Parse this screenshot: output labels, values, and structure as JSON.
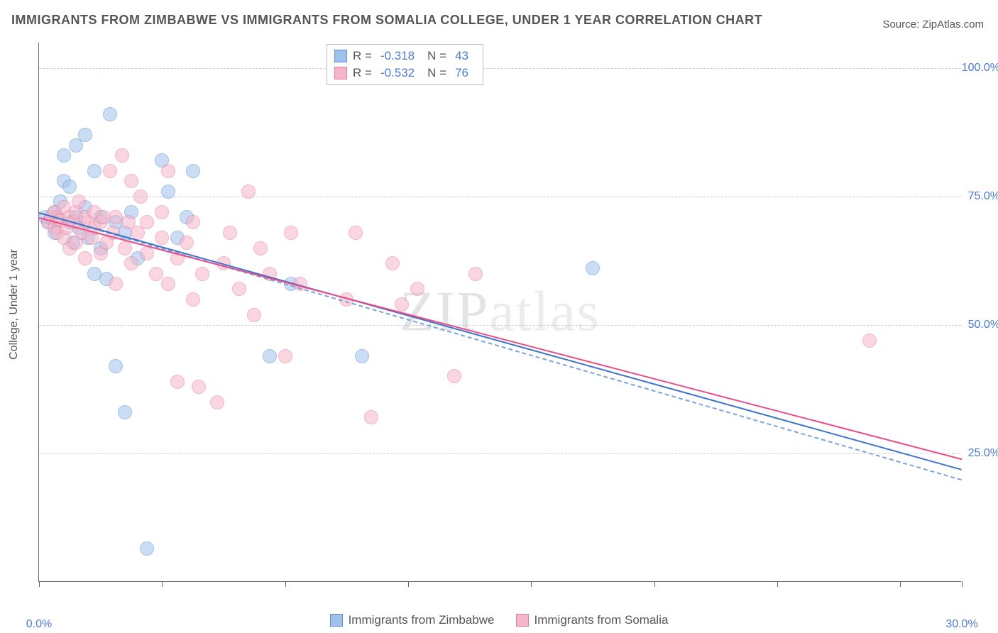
{
  "title": "IMMIGRANTS FROM ZIMBABWE VS IMMIGRANTS FROM SOMALIA COLLEGE, UNDER 1 YEAR CORRELATION CHART",
  "source": "Source: ZipAtlas.com",
  "y_axis_label": "College, Under 1 year",
  "watermark": "ZIPatlas",
  "chart": {
    "type": "scatter",
    "background_color": "#ffffff",
    "grid_color": "#cccccc",
    "axis_color": "#666666",
    "label_color": "#4a7bd0",
    "xlim": [
      0,
      30
    ],
    "ylim": [
      0,
      105
    ],
    "x_ticks": [
      0,
      4,
      8,
      12,
      16,
      20,
      24,
      28,
      30
    ],
    "x_tick_labels": {
      "0": "0.0%",
      "30": "30.0%"
    },
    "y_gridlines": [
      25,
      50,
      75,
      100
    ],
    "y_tick_labels": {
      "25": "25.0%",
      "50": "50.0%",
      "75": "75.0%",
      "100": "100.0%"
    },
    "point_radius": 10,
    "point_opacity": 0.55,
    "trend_line_width": 2.5,
    "trend_line_style_secondary": "dashed"
  },
  "series": [
    {
      "name": "Immigrants from Zimbabwe",
      "color_fill": "#9fc2ec",
      "color_stroke": "#5b8fd6",
      "trend_color": "#3e74c9",
      "trend_secondary_color": "#7aa4d9",
      "R": "-0.318",
      "N": "43",
      "trend": {
        "x1": 0,
        "y1": 72,
        "x2": 30,
        "y2": 22
      },
      "trend2": {
        "x1": 0,
        "y1": 72,
        "x2": 30,
        "y2": 20
      },
      "points": [
        [
          0.2,
          71
        ],
        [
          0.3,
          70
        ],
        [
          0.5,
          72
        ],
        [
          0.5,
          68
        ],
        [
          0.6,
          70.5
        ],
        [
          0.7,
          74
        ],
        [
          0.8,
          78
        ],
        [
          0.8,
          83
        ],
        [
          1.0,
          77
        ],
        [
          1.0,
          70
        ],
        [
          1.1,
          66
        ],
        [
          1.2,
          85
        ],
        [
          1.2,
          71
        ],
        [
          1.3,
          69
        ],
        [
          1.5,
          87
        ],
        [
          1.5,
          73
        ],
        [
          1.6,
          67
        ],
        [
          1.8,
          80
        ],
        [
          1.8,
          60
        ],
        [
          2.0,
          71
        ],
        [
          2.0,
          65
        ],
        [
          2.2,
          59
        ],
        [
          2.3,
          91
        ],
        [
          2.5,
          70
        ],
        [
          2.5,
          42
        ],
        [
          2.8,
          68
        ],
        [
          2.8,
          33
        ],
        [
          3.0,
          72
        ],
        [
          3.2,
          63
        ],
        [
          3.5,
          6.5
        ],
        [
          4.0,
          82
        ],
        [
          4.2,
          76
        ],
        [
          4.5,
          67
        ],
        [
          4.8,
          71
        ],
        [
          5.0,
          80
        ],
        [
          7.5,
          44
        ],
        [
          8.2,
          58
        ],
        [
          10.5,
          44
        ],
        [
          18.0,
          61
        ]
      ]
    },
    {
      "name": "Immigrants from Somalia",
      "color_fill": "#f5b6c8",
      "color_stroke": "#e77ba0",
      "trend_color": "#e84d89",
      "R": "-0.532",
      "N": "76",
      "trend": {
        "x1": 0,
        "y1": 71,
        "x2": 30,
        "y2": 24
      },
      "points": [
        [
          0.3,
          70
        ],
        [
          0.4,
          71
        ],
        [
          0.5,
          69
        ],
        [
          0.5,
          72
        ],
        [
          0.6,
          68
        ],
        [
          0.6,
          71
        ],
        [
          0.7,
          70.5
        ],
        [
          0.8,
          73
        ],
        [
          0.8,
          67
        ],
        [
          0.9,
          69
        ],
        [
          1.0,
          71
        ],
        [
          1.0,
          65
        ],
        [
          1.1,
          70
        ],
        [
          1.2,
          72
        ],
        [
          1.2,
          66
        ],
        [
          1.3,
          74
        ],
        [
          1.4,
          68
        ],
        [
          1.5,
          71
        ],
        [
          1.5,
          63
        ],
        [
          1.6,
          70
        ],
        [
          1.7,
          67
        ],
        [
          1.8,
          69
        ],
        [
          1.8,
          72
        ],
        [
          2.0,
          70
        ],
        [
          2.0,
          64
        ],
        [
          2.1,
          71
        ],
        [
          2.2,
          66
        ],
        [
          2.3,
          80
        ],
        [
          2.4,
          68
        ],
        [
          2.5,
          71
        ],
        [
          2.5,
          58
        ],
        [
          2.7,
          83
        ],
        [
          2.8,
          65
        ],
        [
          2.9,
          70
        ],
        [
          3.0,
          78
        ],
        [
          3.0,
          62
        ],
        [
          3.2,
          68
        ],
        [
          3.3,
          75
        ],
        [
          3.5,
          64
        ],
        [
          3.5,
          70
        ],
        [
          3.8,
          60
        ],
        [
          4.0,
          67
        ],
        [
          4.0,
          72
        ],
        [
          4.2,
          80
        ],
        [
          4.2,
          58
        ],
        [
          4.5,
          63
        ],
        [
          4.5,
          39
        ],
        [
          4.8,
          66
        ],
        [
          5.0,
          55
        ],
        [
          5.0,
          70
        ],
        [
          5.2,
          38
        ],
        [
          5.3,
          60
        ],
        [
          5.8,
          35
        ],
        [
          6.0,
          62
        ],
        [
          6.2,
          68
        ],
        [
          6.5,
          57
        ],
        [
          6.8,
          76
        ],
        [
          7.0,
          52
        ],
        [
          7.2,
          65
        ],
        [
          7.5,
          60
        ],
        [
          8.0,
          44
        ],
        [
          8.2,
          68
        ],
        [
          8.5,
          58
        ],
        [
          10.0,
          55
        ],
        [
          10.3,
          68
        ],
        [
          10.8,
          32
        ],
        [
          11.5,
          62
        ],
        [
          11.8,
          54
        ],
        [
          12.3,
          57
        ],
        [
          13.5,
          40
        ],
        [
          14.2,
          60
        ],
        [
          27.0,
          47
        ]
      ]
    }
  ],
  "stats_box": {
    "rows": [
      {
        "swatch_fill": "#9fc2ec",
        "swatch_stroke": "#5b8fd6",
        "r_label": "R =",
        "r_val": "-0.318",
        "n_label": "N =",
        "n_val": "43"
      },
      {
        "swatch_fill": "#f5b6c8",
        "swatch_stroke": "#e77ba0",
        "r_label": "R =",
        "r_val": "-0.532",
        "n_label": "N =",
        "n_val": "76"
      }
    ]
  },
  "legend": [
    {
      "swatch_fill": "#9fc2ec",
      "swatch_stroke": "#5b8fd6",
      "label": "Immigrants from Zimbabwe"
    },
    {
      "swatch_fill": "#f5b6c8",
      "swatch_stroke": "#e77ba0",
      "label": "Immigrants from Somalia"
    }
  ]
}
